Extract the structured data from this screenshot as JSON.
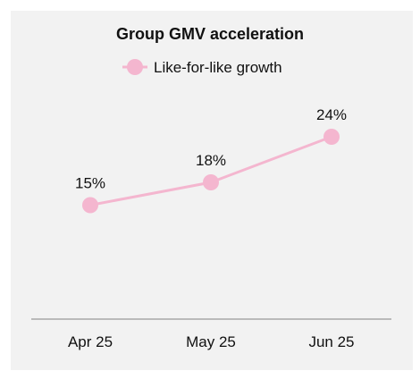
{
  "chart_data": {
    "type": "line",
    "title": "Group GMV acceleration",
    "categories": [
      "Apr 25",
      "May 25",
      "Jun 25"
    ],
    "series": [
      {
        "name": "Like-for-like growth",
        "values": [
          15,
          18,
          24
        ],
        "data_labels": [
          "15%",
          "18%",
          "24%"
        ],
        "color": "#f4b6cf"
      }
    ],
    "ylim": [
      0,
      30
    ],
    "grid": false,
    "legend_position": "top-center",
    "background": "#f2f2f2",
    "axis_color": "#a8a8a8"
  }
}
